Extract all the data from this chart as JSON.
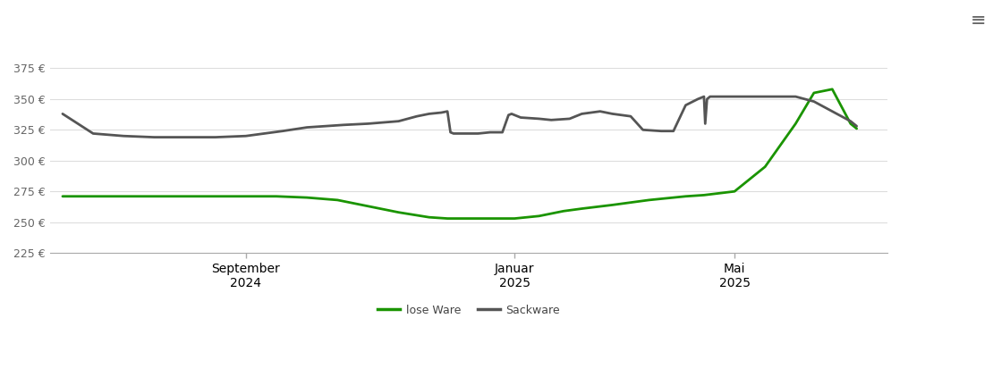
{
  "lose_ware_x": [
    0,
    0.3,
    1.0,
    2.0,
    3.0,
    3.5,
    4.0,
    4.5,
    5.0,
    5.5,
    6.0,
    6.3,
    6.6,
    7.0,
    7.2,
    7.4,
    7.6,
    7.8,
    8.0,
    8.2,
    8.5,
    9.0,
    9.3,
    9.6,
    9.8,
    10.0,
    10.2,
    10.5,
    11.0,
    11.5,
    12.0,
    12.3,
    12.6,
    12.9,
    13.0
  ],
  "lose_ware_y": [
    271,
    271,
    271,
    271,
    271,
    271,
    270,
    268,
    263,
    258,
    254,
    253,
    253,
    253,
    253,
    253,
    254,
    255,
    257,
    259,
    261,
    264,
    266,
    268,
    269,
    270,
    271,
    272,
    275,
    295,
    330,
    355,
    358,
    330,
    326
  ],
  "sack_ware_x": [
    0,
    0.5,
    1.0,
    1.5,
    2.0,
    2.5,
    3.0,
    3.3,
    3.6,
    4.0,
    4.3,
    4.6,
    5.0,
    5.5,
    5.8,
    6.0,
    6.2,
    6.3,
    6.35,
    6.4,
    6.5,
    6.8,
    7.0,
    7.2,
    7.3,
    7.35,
    7.4,
    7.5,
    7.8,
    8.0,
    8.3,
    8.5,
    8.8,
    9.0,
    9.3,
    9.5,
    9.8,
    10.0,
    10.2,
    10.4,
    10.5,
    10.52,
    10.55,
    10.6,
    10.8,
    11.0,
    11.3,
    11.5,
    11.8,
    12.0,
    12.3,
    12.6,
    12.9,
    13.0
  ],
  "sack_ware_y": [
    338,
    322,
    320,
    319,
    319,
    319,
    320,
    322,
    324,
    327,
    328,
    329,
    330,
    332,
    336,
    338,
    339,
    340,
    323,
    322,
    322,
    322,
    323,
    323,
    337,
    338,
    337,
    335,
    334,
    333,
    334,
    338,
    340,
    338,
    336,
    325,
    324,
    324,
    345,
    350,
    352,
    330,
    350,
    352,
    352,
    352,
    352,
    352,
    352,
    352,
    348,
    340,
    332,
    328
  ],
  "x_tick_positions": [
    3.0,
    7.4,
    11.0
  ],
  "x_tick_labels": [
    "September\n2024",
    "Januar\n2025",
    "Mai\n2025"
  ],
  "y_ticks": [
    225,
    250,
    275,
    300,
    325,
    350,
    375
  ],
  "y_lim": [
    215,
    392
  ],
  "x_lim": [
    -0.2,
    13.5
  ],
  "lose_ware_color": "#1a9400",
  "sack_ware_color": "#555555",
  "grid_color": "#dddddd",
  "bg_color": "#ffffff",
  "legend_lose": "lose Ware",
  "legend_sack": "Sackware",
  "line_width": 2.0
}
